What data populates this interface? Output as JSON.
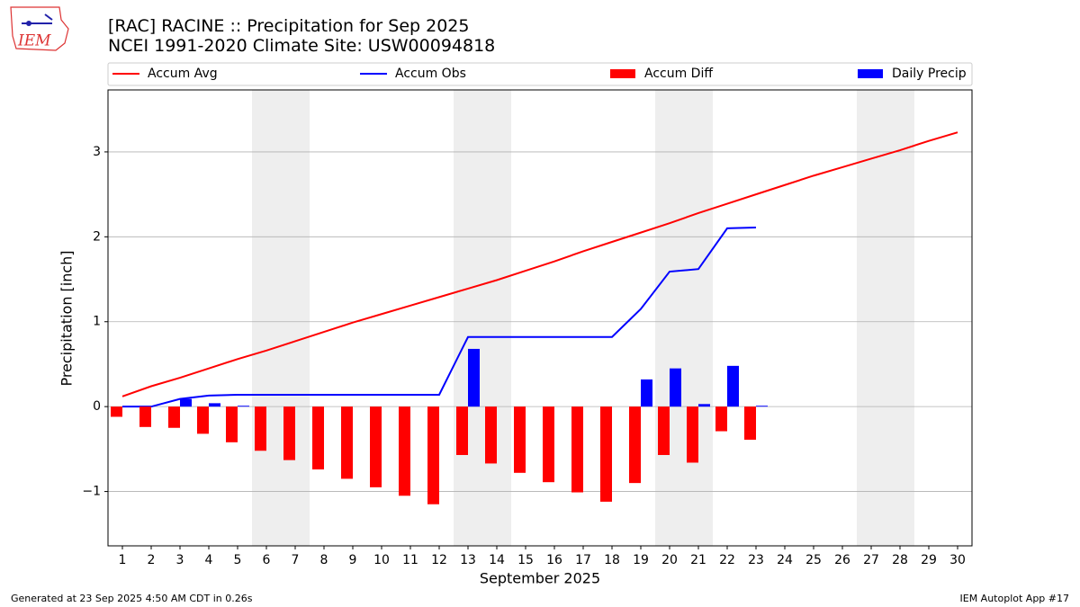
{
  "logo_text": "IEM",
  "footer_left": "Generated at 23 Sep 2025 4:50 AM CDT in 0.26s",
  "footer_right": "IEM Autoplot App #17",
  "chart_data": {
    "type": "bar",
    "title": "[RAC] RACINE :: Precipitation for Sep 2025",
    "subtitle": "NCEI 1991-2020 Climate Site: USW00094818",
    "xlabel": "September 2025",
    "ylabel": "Precipitation [inch]",
    "categories": [
      "1",
      "2",
      "3",
      "4",
      "5",
      "6",
      "7",
      "8",
      "9",
      "10",
      "11",
      "12",
      "13",
      "14",
      "15",
      "16",
      "17",
      "18",
      "19",
      "20",
      "21",
      "22",
      "23",
      "24",
      "25",
      "26",
      "27",
      "28",
      "29",
      "30"
    ],
    "ylim": [
      -1.64,
      3.73
    ],
    "yticks": [
      {
        "value": -1,
        "label": "−1"
      },
      0,
      1,
      2,
      3
    ],
    "grid": true,
    "series": [
      {
        "name": "Accum Avg",
        "type": "line",
        "color": "#ff0000",
        "values": [
          0.12,
          0.24,
          0.34,
          0.45,
          0.56,
          0.66,
          0.77,
          0.88,
          0.99,
          1.09,
          1.19,
          1.29,
          1.39,
          1.49,
          1.6,
          1.71,
          1.83,
          1.94,
          2.05,
          2.16,
          2.28,
          2.39,
          2.5,
          2.61,
          2.72,
          2.82,
          2.92,
          3.02,
          3.13,
          3.23
        ]
      },
      {
        "name": "Accum Obs",
        "type": "line",
        "color": "#0000ff",
        "values": [
          0,
          0,
          0.09,
          0.13,
          0.14,
          0.14,
          0.14,
          0.14,
          0.14,
          0.14,
          0.14,
          0.14,
          0.82,
          0.82,
          0.82,
          0.82,
          0.82,
          0.82,
          1.15,
          1.59,
          1.62,
          2.1,
          2.11,
          null,
          null,
          null,
          null,
          null,
          null,
          null
        ]
      },
      {
        "name": "Accum Diff",
        "type": "bar",
        "color": "#ff0000",
        "values": [
          -0.12,
          -0.24,
          -0.25,
          -0.32,
          -0.42,
          -0.52,
          -0.63,
          -0.74,
          -0.85,
          -0.95,
          -1.05,
          -1.15,
          -0.57,
          -0.67,
          -0.78,
          -0.89,
          -1.01,
          -1.12,
          -0.9,
          -0.57,
          -0.66,
          -0.29,
          -0.39,
          null,
          null,
          null,
          null,
          null,
          null,
          null
        ]
      },
      {
        "name": "Daily Precip",
        "type": "bar",
        "color": "#0000ff",
        "values": [
          0,
          0,
          0.09,
          0.04,
          0.01,
          0,
          0,
          0,
          0,
          0,
          0,
          0,
          0.68,
          0,
          0,
          0,
          0,
          0,
          0.32,
          0.45,
          0.03,
          0.48,
          0.01,
          null,
          null,
          null,
          null,
          null,
          null,
          null
        ]
      }
    ]
  }
}
